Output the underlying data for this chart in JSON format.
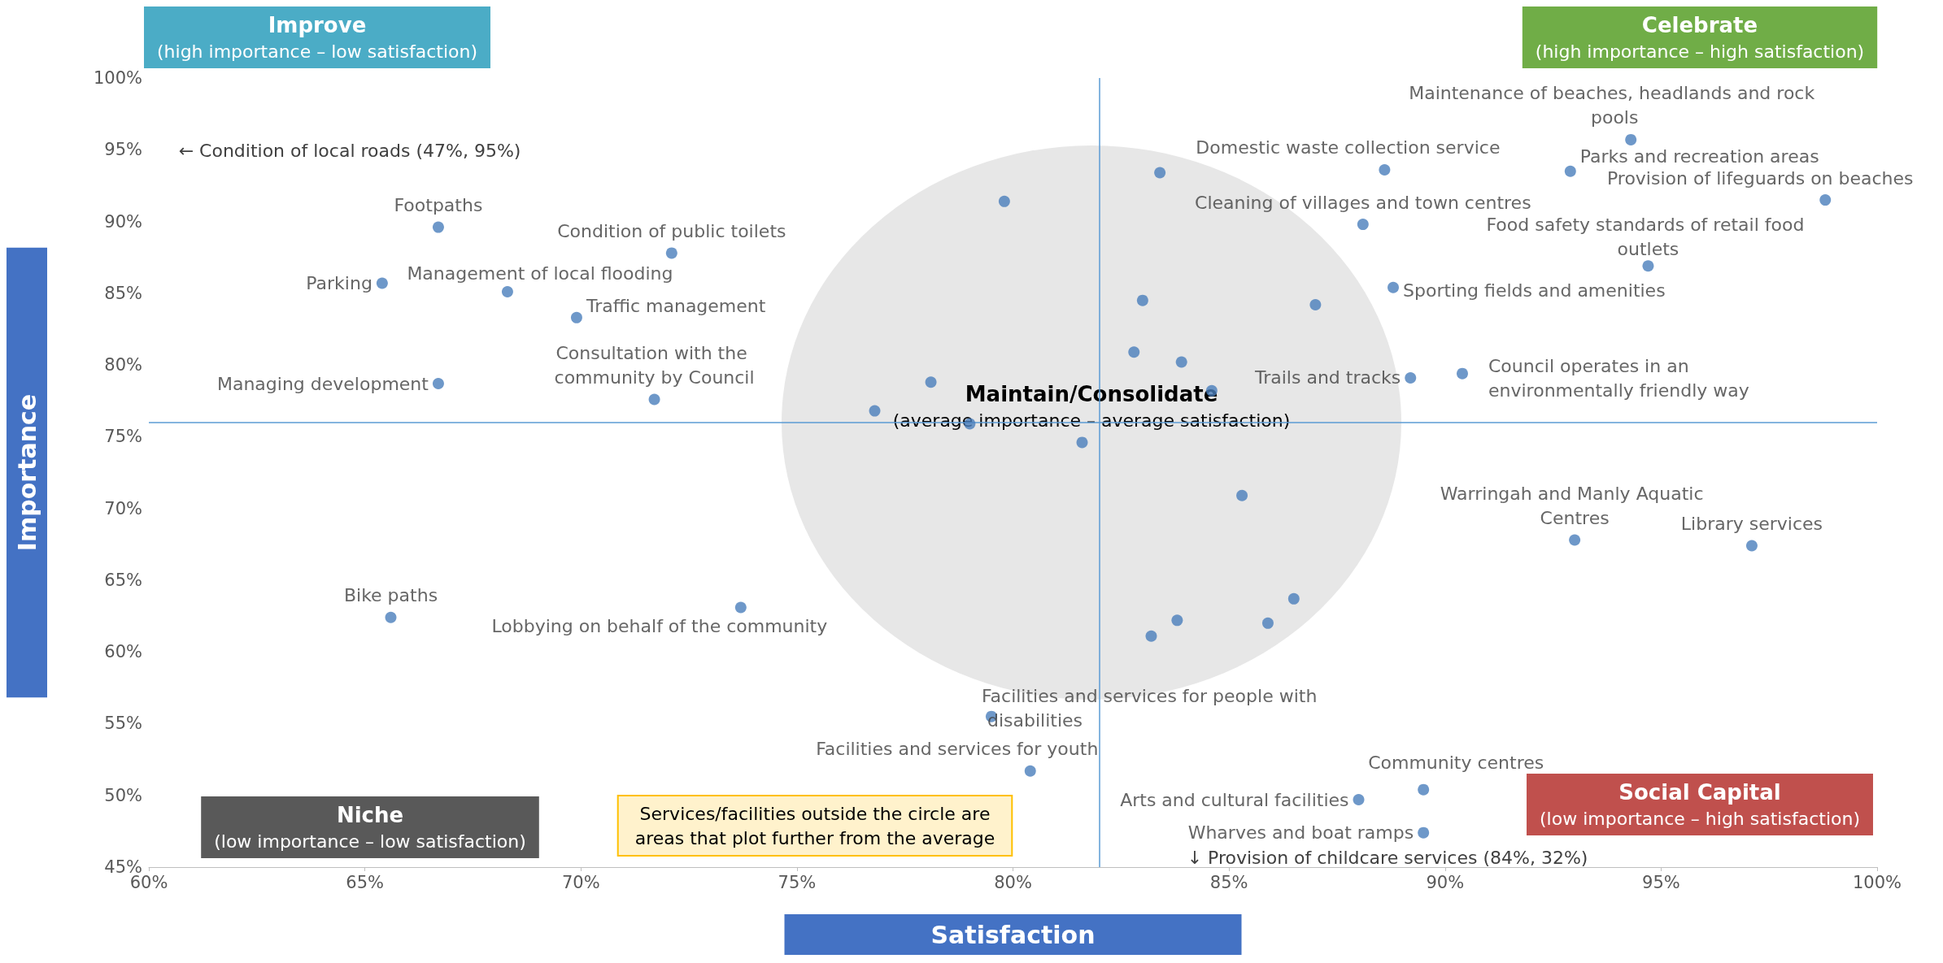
{
  "chart_data": {
    "type": "scatter",
    "xlabel": "Satisfaction",
    "ylabel": "Importance",
    "xlim": [
      60,
      100
    ],
    "xticks": [
      {
        "value": 60,
        "label": "60%"
      },
      {
        "value": 65,
        "label": "65%"
      },
      {
        "value": 70,
        "label": "70%"
      },
      {
        "value": 75,
        "label": "75%"
      },
      {
        "value": 80,
        "label": "80%"
      },
      {
        "value": 85,
        "label": "85%"
      },
      {
        "value": 90,
        "label": "90%"
      },
      {
        "value": 95,
        "label": "95%"
      },
      {
        "value": 100,
        "label": "100%"
      }
    ],
    "ylim": [
      45,
      100
    ],
    "yticks": [
      {
        "value": 45,
        "label": "45%"
      },
      {
        "value": 50,
        "label": "50%"
      },
      {
        "value": 55,
        "label": "55%"
      },
      {
        "value": 60,
        "label": "60%"
      },
      {
        "value": 65,
        "label": "65%"
      },
      {
        "value": 70,
        "label": "70%"
      },
      {
        "value": 75,
        "label": "75%"
      },
      {
        "value": 80,
        "label": "80%"
      },
      {
        "value": 85,
        "label": "85%"
      },
      {
        "value": 90,
        "label": "90%"
      },
      {
        "value": 95,
        "label": "95%"
      },
      {
        "value": 100,
        "label": "100%"
      }
    ],
    "grid": false,
    "legend": false,
    "marker": "circle",
    "ref_lines": [
      {
        "axis": "x",
        "value": 82,
        "color": "#5b9bd5"
      },
      {
        "axis": "y",
        "value": 76,
        "color": "#5b9bd5"
      }
    ],
    "annotations": [
      "Improve\n(high importance – low satisfaction)",
      "Celebrate\n(high importance – high satisfaction)",
      "Niche\n(low importance – low satisfaction)",
      "Social Capital\n(low importance – high satisfaction)",
      "Maintain/Consolidate\n(average importance – average satisfaction)",
      "Services/facilities outside the circle are\nareas that plot further from the average",
      "← Condition of local roads (47%, 95%)",
      "↓ Provision of childcare services (84%, 32%)"
    ],
    "series": [
      {
        "name": "Maintenance of beaches, headlands and rock pools",
        "color": "#4a7ebb",
        "x": [
          94.3
        ],
        "values": [
          95.7
        ]
      },
      {
        "name": "Parks and recreation areas",
        "color": "#4a7ebb",
        "x": [
          92.9
        ],
        "values": [
          93.5
        ]
      },
      {
        "name": "Provision of lifeguards on beaches",
        "color": "#4a7ebb",
        "x": [
          98.8
        ],
        "values": [
          91.5
        ]
      },
      {
        "name": "Domestic waste collection service",
        "color": "#4a7ebb",
        "x": [
          88.6
        ],
        "values": [
          93.6
        ]
      },
      {
        "name": "Cleaning of villages and town centres",
        "color": "#4a7ebb",
        "x": [
          88.1
        ],
        "values": [
          89.8
        ]
      },
      {
        "name": "Food safety standards of retail food outlets",
        "color": "#4a7ebb",
        "x": [
          94.7
        ],
        "values": [
          86.9
        ]
      },
      {
        "name": "Sporting fields and amenities",
        "color": "#4a7ebb",
        "x": [
          88.8
        ],
        "values": [
          85.4
        ]
      },
      {
        "name": "Trails and tracks",
        "color": "#4a7ebb",
        "x": [
          89.2
        ],
        "values": [
          79.1
        ]
      },
      {
        "name": "Council operates in an environmentally friendly way",
        "color": "#4a7ebb",
        "x": [
          90.4
        ],
        "values": [
          79.4
        ]
      },
      {
        "name": "Warringah and Manly Aquatic Centres",
        "color": "#4a7ebb",
        "x": [
          93.0
        ],
        "values": [
          67.8
        ]
      },
      {
        "name": "Library services",
        "color": "#4a7ebb",
        "x": [
          97.1
        ],
        "values": [
          67.4
        ]
      },
      {
        "name": "Footpaths",
        "color": "#4a7ebb",
        "x": [
          66.7
        ],
        "values": [
          89.6
        ]
      },
      {
        "name": "Condition of public toilets",
        "color": "#4a7ebb",
        "x": [
          72.1
        ],
        "values": [
          87.8
        ]
      },
      {
        "name": "Management of local flooding",
        "color": "#4a7ebb",
        "x": [
          68.3
        ],
        "values": [
          85.1
        ]
      },
      {
        "name": "Parking",
        "color": "#4a7ebb",
        "x": [
          65.4
        ],
        "values": [
          85.7
        ]
      },
      {
        "name": "Traffic management",
        "color": "#4a7ebb",
        "x": [
          69.9
        ],
        "values": [
          83.3
        ]
      },
      {
        "name": "Managing development",
        "color": "#4a7ebb",
        "x": [
          66.7
        ],
        "values": [
          78.7
        ]
      },
      {
        "name": "Consultation with the community by Council",
        "color": "#4a7ebb",
        "x": [
          71.7
        ],
        "values": [
          77.6
        ]
      },
      {
        "name": "Bike paths",
        "color": "#4a7ebb",
        "x": [
          65.6
        ],
        "values": [
          62.4
        ]
      },
      {
        "name": "Lobbying on behalf of the community",
        "color": "#4a7ebb",
        "x": [
          73.7
        ],
        "values": [
          63.1
        ]
      },
      {
        "name": "Facilities and services for people with disabilities",
        "color": "#4a7ebb",
        "x": [
          79.5
        ],
        "values": [
          55.5
        ]
      },
      {
        "name": "Facilities and services for youth",
        "color": "#4a7ebb",
        "x": [
          80.4
        ],
        "values": [
          51.7
        ]
      },
      {
        "name": "Community centres",
        "color": "#4a7ebb",
        "x": [
          89.5
        ],
        "values": [
          50.4
        ]
      },
      {
        "name": "Arts and cultural facilities",
        "color": "#4a7ebb",
        "x": [
          88.0
        ],
        "values": [
          49.7
        ]
      },
      {
        "name": "Wharves and boat ramps",
        "color": "#4a7ebb",
        "x": [
          89.5
        ],
        "values": [
          47.4
        ]
      },
      {
        "color": "#4a7ebb",
        "x": [
          83.4,
          79.8,
          87.0,
          83.0,
          82.8,
          83.9,
          84.6,
          78.1,
          76.8,
          79.0,
          81.6,
          85.3,
          86.5,
          83.8,
          85.9,
          83.2
        ],
        "values": [
          93.4,
          91.4,
          84.2,
          84.5,
          80.9,
          80.2,
          78.2,
          78.8,
          76.8,
          75.9,
          74.6,
          70.9,
          63.7,
          62.2,
          62.0,
          61.1
        ]
      }
    ]
  }
}
